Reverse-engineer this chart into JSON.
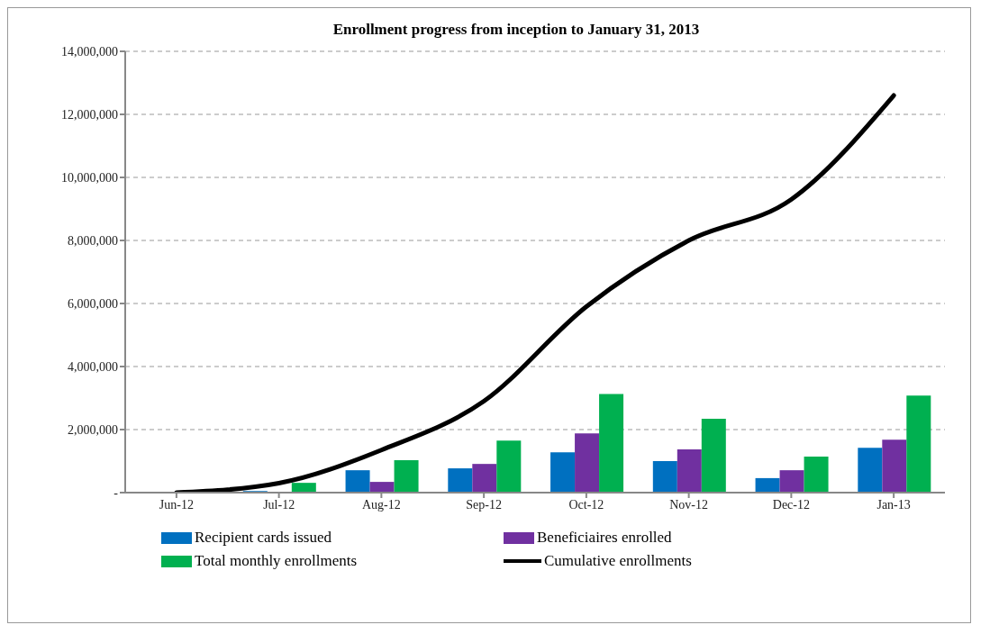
{
  "chart_data": {
    "type": "bar",
    "title": "Enrollment progress from inception to January 31, 2013",
    "categories": [
      "Jun-12",
      "Jul-12",
      "Aug-12",
      "Sep-12",
      "Oct-12",
      "Nov-12",
      "Dec-12",
      "Jan-13"
    ],
    "series": [
      {
        "name": "Recipient cards issued",
        "color": "#0070c0",
        "values": [
          0,
          50000,
          710000,
          770000,
          1280000,
          1000000,
          460000,
          1420000
        ]
      },
      {
        "name": "Beneficiaires enrolled",
        "color": "#7030a0",
        "values": [
          0,
          null,
          340000,
          910000,
          1880000,
          1370000,
          710000,
          1680000
        ]
      },
      {
        "name": "Total monthly enrollments",
        "color": "#00b050",
        "values": [
          0,
          310000,
          1030000,
          1650000,
          3130000,
          2340000,
          1140000,
          3080000
        ]
      },
      {
        "name": "Cumulative enrollments",
        "color": "#000000",
        "type": "line",
        "values": [
          0,
          300000,
          1350000,
          2900000,
          5900000,
          8000000,
          9300000,
          12600000
        ]
      }
    ],
    "ylim": [
      0,
      14000000
    ],
    "yticks": [
      {
        "value": 0,
        "label": "-"
      },
      {
        "value": 2000000,
        "label": "2,000,000"
      },
      {
        "value": 4000000,
        "label": "4,000,000"
      },
      {
        "value": 6000000,
        "label": "6,000,000"
      },
      {
        "value": 8000000,
        "label": "8,000,000"
      },
      {
        "value": 10000000,
        "label": "10,000,000"
      },
      {
        "value": 12000000,
        "label": "12,000,000"
      },
      {
        "value": 14000000,
        "label": "14,000,000"
      }
    ],
    "grid": "y",
    "legend": "bottom",
    "marker": "none",
    "line_style": "solid"
  }
}
